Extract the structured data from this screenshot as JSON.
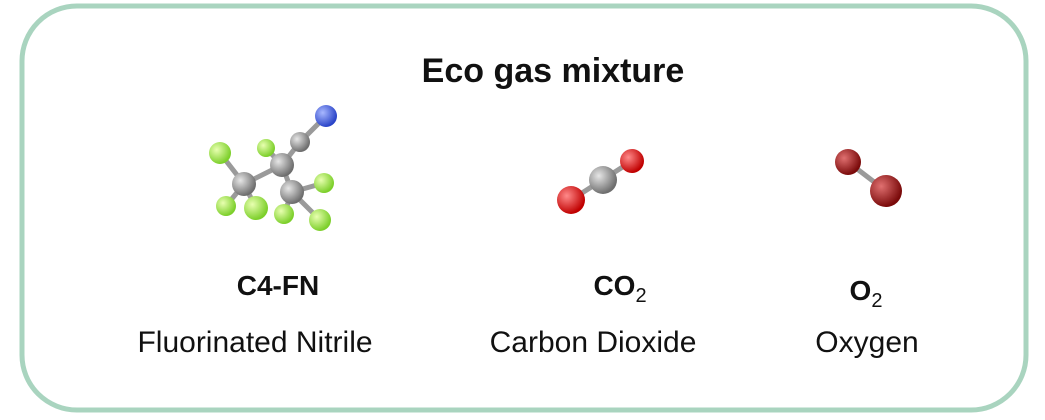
{
  "title": "Eco gas mixture",
  "molecules": [
    {
      "formula": "C4-FN",
      "subscript": null,
      "name": "Fluorinated Nitrile"
    },
    {
      "formula": "CO",
      "subscript": "2",
      "name": "Carbon Dioxide"
    },
    {
      "formula": "O",
      "subscript": "2",
      "name": "Oxygen"
    }
  ]
}
